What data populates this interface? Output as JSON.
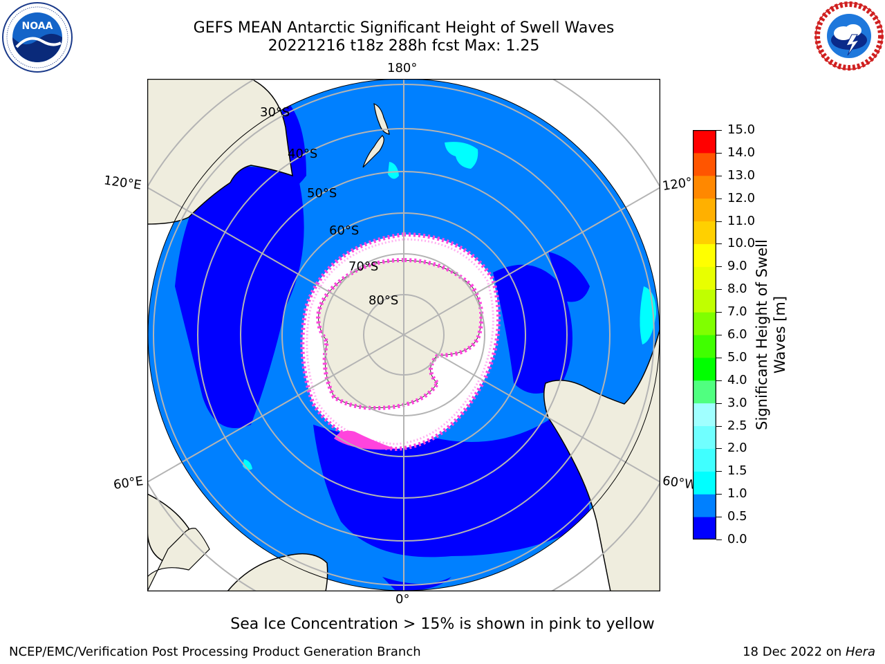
{
  "title": {
    "line1": "GEFS MEAN Antarctic Significant Height of Swell Waves",
    "line2": "20221216 t18z 288h fcst   Max: 1.25"
  },
  "logos": {
    "left": {
      "name": "noaa-logo",
      "text": "NOAA",
      "ring_text": "NATIONAL OCEANIC AND ATMOSPHERIC ADMINISTRATION · U.S. DEPARTMENT OF COMMERCE"
    },
    "right": {
      "name": "nws-logo",
      "ring_text": "NATIONAL WEATHER SERVICE"
    }
  },
  "map": {
    "projection": "south-polar-stereographic",
    "longitude_labels": [
      "180°",
      "120°E",
      "120°",
      "60°E",
      "60°W",
      "0°"
    ],
    "latitude_labels": [
      "30°S",
      "40°S",
      "50°S",
      "60°S",
      "70°S",
      "80°S"
    ],
    "colors": {
      "land": "#efedde",
      "ocean_low": "#0000ff",
      "ocean_mid": "#0080ff",
      "cyan": "#00ffff",
      "ice_white": "#ffffff",
      "ice_pink": "#ff44dd",
      "grid": "#b4b4b4"
    }
  },
  "colorbar": {
    "label": "Significant Height of Swell Waves [m]",
    "ticks": [
      "0.0",
      "0.5",
      "1.0",
      "1.5",
      "2.0",
      "2.5",
      "3.0",
      "4.0",
      "5.0",
      "6.0",
      "7.0",
      "8.0",
      "9.0",
      "10.0",
      "11.0",
      "12.0",
      "13.0",
      "14.0",
      "15.0"
    ],
    "colors": [
      "#0000ff",
      "#0080ff",
      "#00ffff",
      "#40ffff",
      "#70ffff",
      "#a0ffff",
      "#50ff80",
      "#00ff00",
      "#40ff00",
      "#80ff00",
      "#c0ff00",
      "#e8ff00",
      "#ffff00",
      "#ffd000",
      "#ffb000",
      "#ff8800",
      "#ff5500",
      "#ff0000"
    ]
  },
  "caption": "Sea Ice Concentration > 15% is shown in pink to yellow",
  "footer": {
    "left": "NCEP/EMC/Verification Post Processing Product Generation Branch",
    "date": "18 Dec 2022 on ",
    "machine": "Hera"
  }
}
